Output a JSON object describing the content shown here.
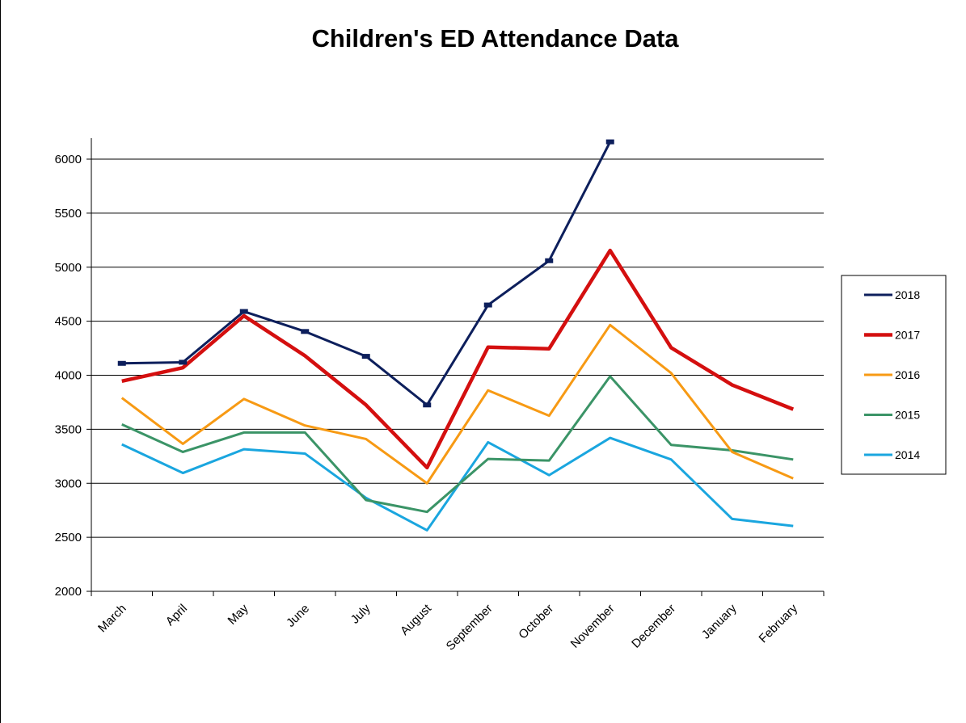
{
  "chart_data": {
    "type": "line",
    "title": "Children's ED Attendance Data",
    "xlabel": "",
    "ylabel": "",
    "categories": [
      "March",
      "April",
      "May",
      "June",
      "July",
      "August",
      "September",
      "October",
      "November",
      "December",
      "January",
      "February"
    ],
    "ylim": [
      2000,
      6200
    ],
    "yticks": [
      2000,
      2500,
      3000,
      3500,
      4000,
      4500,
      5000,
      5500,
      6000
    ],
    "grid": true,
    "legend_position": "right",
    "series": [
      {
        "name": "2018",
        "color": "#0d1f5c",
        "values": [
          4110,
          4120,
          4590,
          4405,
          4175,
          3725,
          4650,
          5060,
          6160,
          null,
          null,
          null
        ],
        "markers": true
      },
      {
        "name": "2017",
        "color": "#d40f0f",
        "values": [
          3945,
          4070,
          4550,
          4180,
          3725,
          3145,
          4260,
          4245,
          5155,
          4255,
          3910,
          3685
        ],
        "markers": false
      },
      {
        "name": "2016",
        "color": "#f79a14",
        "values": [
          3790,
          3365,
          3780,
          3535,
          3410,
          3000,
          3860,
          3625,
          4465,
          4020,
          3290,
          3045
        ],
        "markers": false
      },
      {
        "name": "2015",
        "color": "#3b9467",
        "values": [
          3545,
          3290,
          3470,
          3470,
          2845,
          2735,
          3225,
          3210,
          3990,
          3355,
          3305,
          3220
        ],
        "markers": false
      },
      {
        "name": "2014",
        "color": "#1aa6df",
        "values": [
          3360,
          3095,
          3315,
          3275,
          2865,
          2565,
          3380,
          3075,
          3420,
          3220,
          2670,
          2605
        ],
        "markers": false
      }
    ]
  }
}
